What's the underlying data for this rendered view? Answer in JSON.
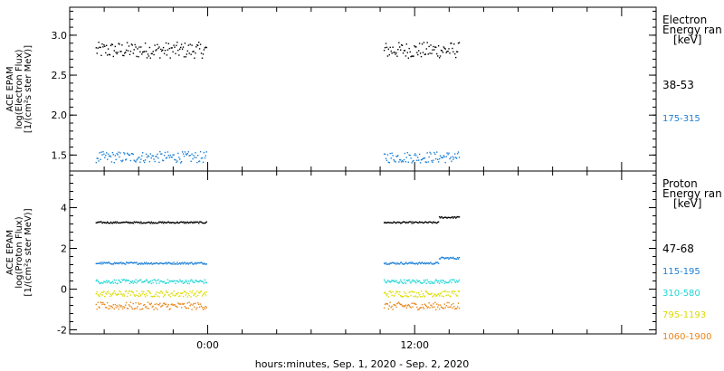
{
  "chart_data": [
    {
      "type": "scatter",
      "panel": "electron",
      "ylabel": [
        "ACE EPAM",
        "log(Electron Flux)",
        "[1/(cm²s ster MeV)]"
      ],
      "ylim": [
        1.3,
        3.35
      ],
      "yticks": [
        1.5,
        2.0,
        2.5,
        3.0
      ],
      "ytick_labels": [
        "1.5",
        "2.0",
        "2.5",
        "3.0"
      ],
      "legend_title": [
        "Electron",
        "Energy ran",
        "[keV]"
      ],
      "legend_position": "right",
      "series": [
        {
          "name": "38-53",
          "color": "#000000",
          "level": 2.82,
          "jitter": 0.1,
          "segments": [
            [
              -6.5,
              -0.1,
              2.82
            ],
            [
              10.2,
              14.6,
              2.82
            ]
          ]
        },
        {
          "name": "175-315",
          "color": "#1a7fd6",
          "level": 1.48,
          "jitter": 0.07,
          "segments": [
            [
              -6.5,
              -0.1,
              1.48
            ],
            [
              10.2,
              14.6,
              1.48
            ]
          ]
        }
      ]
    },
    {
      "type": "scatter",
      "panel": "proton",
      "ylabel": [
        "ACE EPAM",
        "log(Proton Flux)",
        "[1/(cm²s ster MeV)]"
      ],
      "ylim": [
        -2.2,
        5.8
      ],
      "yticks": [
        -2,
        0,
        2,
        4
      ],
      "ytick_labels": [
        "-2",
        "0",
        "2",
        "4"
      ],
      "legend_title": [
        "Proton",
        "Energy ran",
        "[keV]"
      ],
      "legend_position": "right",
      "series": [
        {
          "name": "47-68",
          "color": "#000000",
          "level": 3.3,
          "jitter": 0.04,
          "segments": [
            [
              -6.5,
              -0.1,
              3.3
            ],
            [
              10.2,
              13.4,
              3.3
            ],
            [
              13.4,
              14.6,
              3.55
            ]
          ]
        },
        {
          "name": "115-195",
          "color": "#1a7fd6",
          "level": 1.3,
          "jitter": 0.05,
          "segments": [
            [
              -6.5,
              -0.1,
              1.3
            ],
            [
              10.2,
              13.4,
              1.3
            ],
            [
              13.4,
              14.6,
              1.55
            ]
          ]
        },
        {
          "name": "310-580",
          "color": "#22d6d6",
          "level": 0.4,
          "jitter": 0.1,
          "segments": [
            [
              -6.5,
              -0.1,
              0.4
            ],
            [
              10.2,
              14.6,
              0.4
            ]
          ]
        },
        {
          "name": "795-1193",
          "color": "#dcdc00",
          "level": -0.2,
          "jitter": 0.15,
          "segments": [
            [
              -6.5,
              -0.1,
              -0.2
            ],
            [
              10.2,
              14.6,
              -0.2
            ]
          ]
        },
        {
          "name": "1060-1900",
          "color": "#e8861a",
          "level": -0.8,
          "jitter": 0.18,
          "segments": [
            [
              -6.5,
              -0.1,
              -0.8
            ],
            [
              10.2,
              14.6,
              -0.8
            ]
          ]
        }
      ]
    }
  ],
  "xaxis": {
    "range_hours": [
      -8,
      26
    ],
    "major_ticks": [
      0,
      12
    ],
    "tick_labels": [
      "0:00",
      "12:00"
    ],
    "minor_step": 2,
    "xlabel": "hours:minutes, Sep.  1, 2020 - Sep.  2, 2020"
  }
}
